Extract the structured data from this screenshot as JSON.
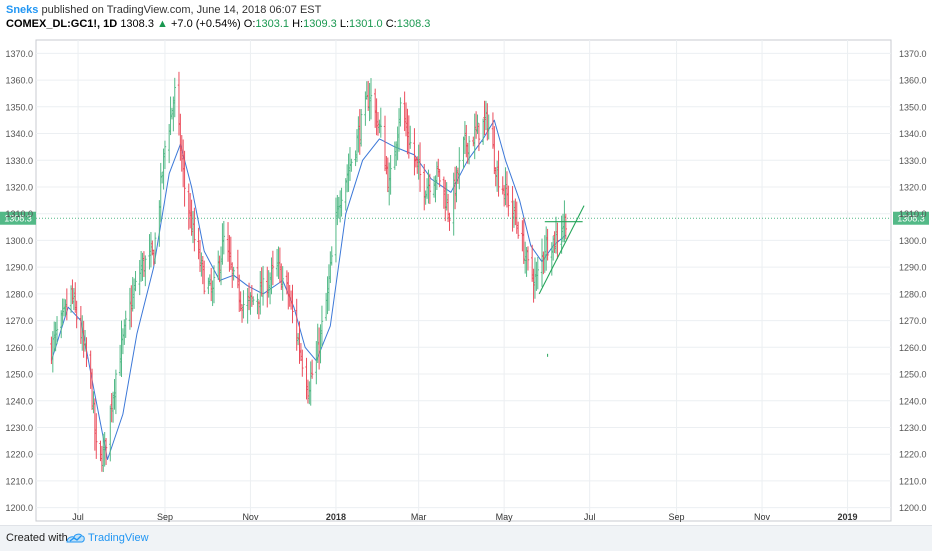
{
  "header": {
    "author": "Sneks",
    "published": "published on TradingView.com, June 14, 2018 06:07 EST",
    "symbol": "COMEX_DL:GC1!, 1D",
    "last": "1308.3",
    "arrow": "▲",
    "change": "+7.0 (+0.54%)",
    "o_label": "O:",
    "o_value": "1303.1",
    "h_label": "H:",
    "h_value": "1309.3",
    "l_label": "L:",
    "l_value": "1301.0",
    "c_label": "C:",
    "c_value": "1308.3"
  },
  "footer": {
    "created_with": "Created with",
    "brand": "TradingView"
  },
  "chart_data": {
    "type": "ohlc",
    "symbol": "COMEX_DL:GC1!",
    "interval": "1D",
    "ylim": [
      1195,
      1375
    ],
    "y_ticks": [
      1200,
      1210,
      1220,
      1230,
      1240,
      1250,
      1260,
      1270,
      1280,
      1290,
      1300,
      1310,
      1320,
      1330,
      1340,
      1350,
      1360,
      1370
    ],
    "x_labels": [
      "Jul",
      "Sep",
      "Nov",
      "2018",
      "Mar",
      "May",
      "Jul",
      "Sep",
      "Nov",
      "2019"
    ],
    "last_price": 1308.3,
    "last_price_label": "1308.3",
    "up_color": "#53b987",
    "down_color": "#eb4d5c",
    "ma_color": "#3c78d8",
    "trendline_color": "#26a65b",
    "grid": true,
    "close_path": [
      [
        "2017-06-12",
        1260
      ],
      [
        "2017-06-20",
        1270
      ],
      [
        "2017-06-26",
        1280
      ],
      [
        "2017-07-03",
        1265
      ],
      [
        "2017-07-10",
        1248
      ],
      [
        "2017-07-15",
        1215
      ],
      [
        "2017-07-20",
        1222
      ],
      [
        "2017-07-28",
        1250
      ],
      [
        "2017-08-07",
        1275
      ],
      [
        "2017-08-15",
        1290
      ],
      [
        "2017-08-24",
        1295
      ],
      [
        "2017-09-01",
        1335
      ],
      [
        "2017-09-08",
        1355
      ],
      [
        "2017-09-15",
        1320
      ],
      [
        "2017-09-22",
        1300
      ],
      [
        "2017-09-29",
        1285
      ],
      [
        "2017-10-05",
        1280
      ],
      [
        "2017-10-13",
        1300
      ],
      [
        "2017-10-20",
        1285
      ],
      [
        "2017-10-28",
        1275
      ],
      [
        "2017-11-08",
        1280
      ],
      [
        "2017-11-20",
        1290
      ],
      [
        "2017-11-28",
        1280
      ],
      [
        "2017-12-06",
        1260
      ],
      [
        "2017-12-12",
        1245
      ],
      [
        "2017-12-18",
        1255
      ],
      [
        "2017-12-26",
        1280
      ],
      [
        "2018-01-03",
        1315
      ],
      [
        "2018-01-12",
        1330
      ],
      [
        "2018-01-25",
        1355
      ],
      [
        "2018-02-02",
        1340
      ],
      [
        "2018-02-08",
        1320
      ],
      [
        "2018-02-16",
        1350
      ],
      [
        "2018-02-26",
        1330
      ],
      [
        "2018-03-05",
        1320
      ],
      [
        "2018-03-15",
        1325
      ],
      [
        "2018-03-23",
        1310
      ],
      [
        "2018-04-02",
        1335
      ],
      [
        "2018-04-11",
        1340
      ],
      [
        "2018-04-19",
        1345
      ],
      [
        "2018-04-26",
        1325
      ],
      [
        "2018-05-04",
        1315
      ],
      [
        "2018-05-11",
        1305
      ],
      [
        "2018-05-18",
        1290
      ],
      [
        "2018-05-24",
        1285
      ],
      [
        "2018-05-30",
        1298
      ],
      [
        "2018-06-06",
        1300
      ],
      [
        "2018-06-14",
        1308.3
      ]
    ],
    "ma_path": [
      [
        "2017-06-12",
        1255
      ],
      [
        "2017-06-24",
        1275
      ],
      [
        "2017-07-03",
        1270
      ],
      [
        "2017-07-12",
        1245
      ],
      [
        "2017-07-22",
        1218
      ],
      [
        "2017-08-02",
        1235
      ],
      [
        "2017-08-12",
        1265
      ],
      [
        "2017-08-24",
        1290
      ],
      [
        "2017-09-04",
        1325
      ],
      [
        "2017-09-12",
        1336
      ],
      [
        "2017-09-20",
        1320
      ],
      [
        "2017-09-29",
        1296
      ],
      [
        "2017-10-10",
        1285
      ],
      [
        "2017-10-20",
        1287
      ],
      [
        "2017-10-30",
        1283
      ],
      [
        "2017-11-10",
        1280
      ],
      [
        "2017-11-24",
        1285
      ],
      [
        "2017-12-02",
        1275
      ],
      [
        "2017-12-10",
        1260
      ],
      [
        "2017-12-18",
        1255
      ],
      [
        "2017-12-28",
        1268
      ],
      [
        "2018-01-08",
        1310
      ],
      [
        "2018-01-20",
        1330
      ],
      [
        "2018-02-01",
        1338
      ],
      [
        "2018-02-12",
        1335
      ],
      [
        "2018-02-26",
        1332
      ],
      [
        "2018-03-10",
        1323
      ],
      [
        "2018-03-24",
        1318
      ],
      [
        "2018-04-05",
        1330
      ],
      [
        "2018-04-16",
        1338
      ],
      [
        "2018-04-24",
        1345
      ],
      [
        "2018-05-02",
        1330
      ],
      [
        "2018-05-12",
        1315
      ],
      [
        "2018-05-20",
        1298
      ],
      [
        "2018-05-28",
        1292
      ],
      [
        "2018-06-05",
        1298
      ],
      [
        "2018-06-14",
        1302
      ]
    ],
    "trendlines": [
      {
        "from": [
          "2018-05-26",
          1280
        ],
        "to": [
          "2018-06-27",
          1313
        ]
      },
      {
        "from": [
          "2018-05-30",
          1307
        ],
        "to": [
          "2018-06-26",
          1307
        ]
      }
    ],
    "markers": [
      {
        "at": [
          "2018-06-01",
          1257
        ]
      }
    ]
  }
}
